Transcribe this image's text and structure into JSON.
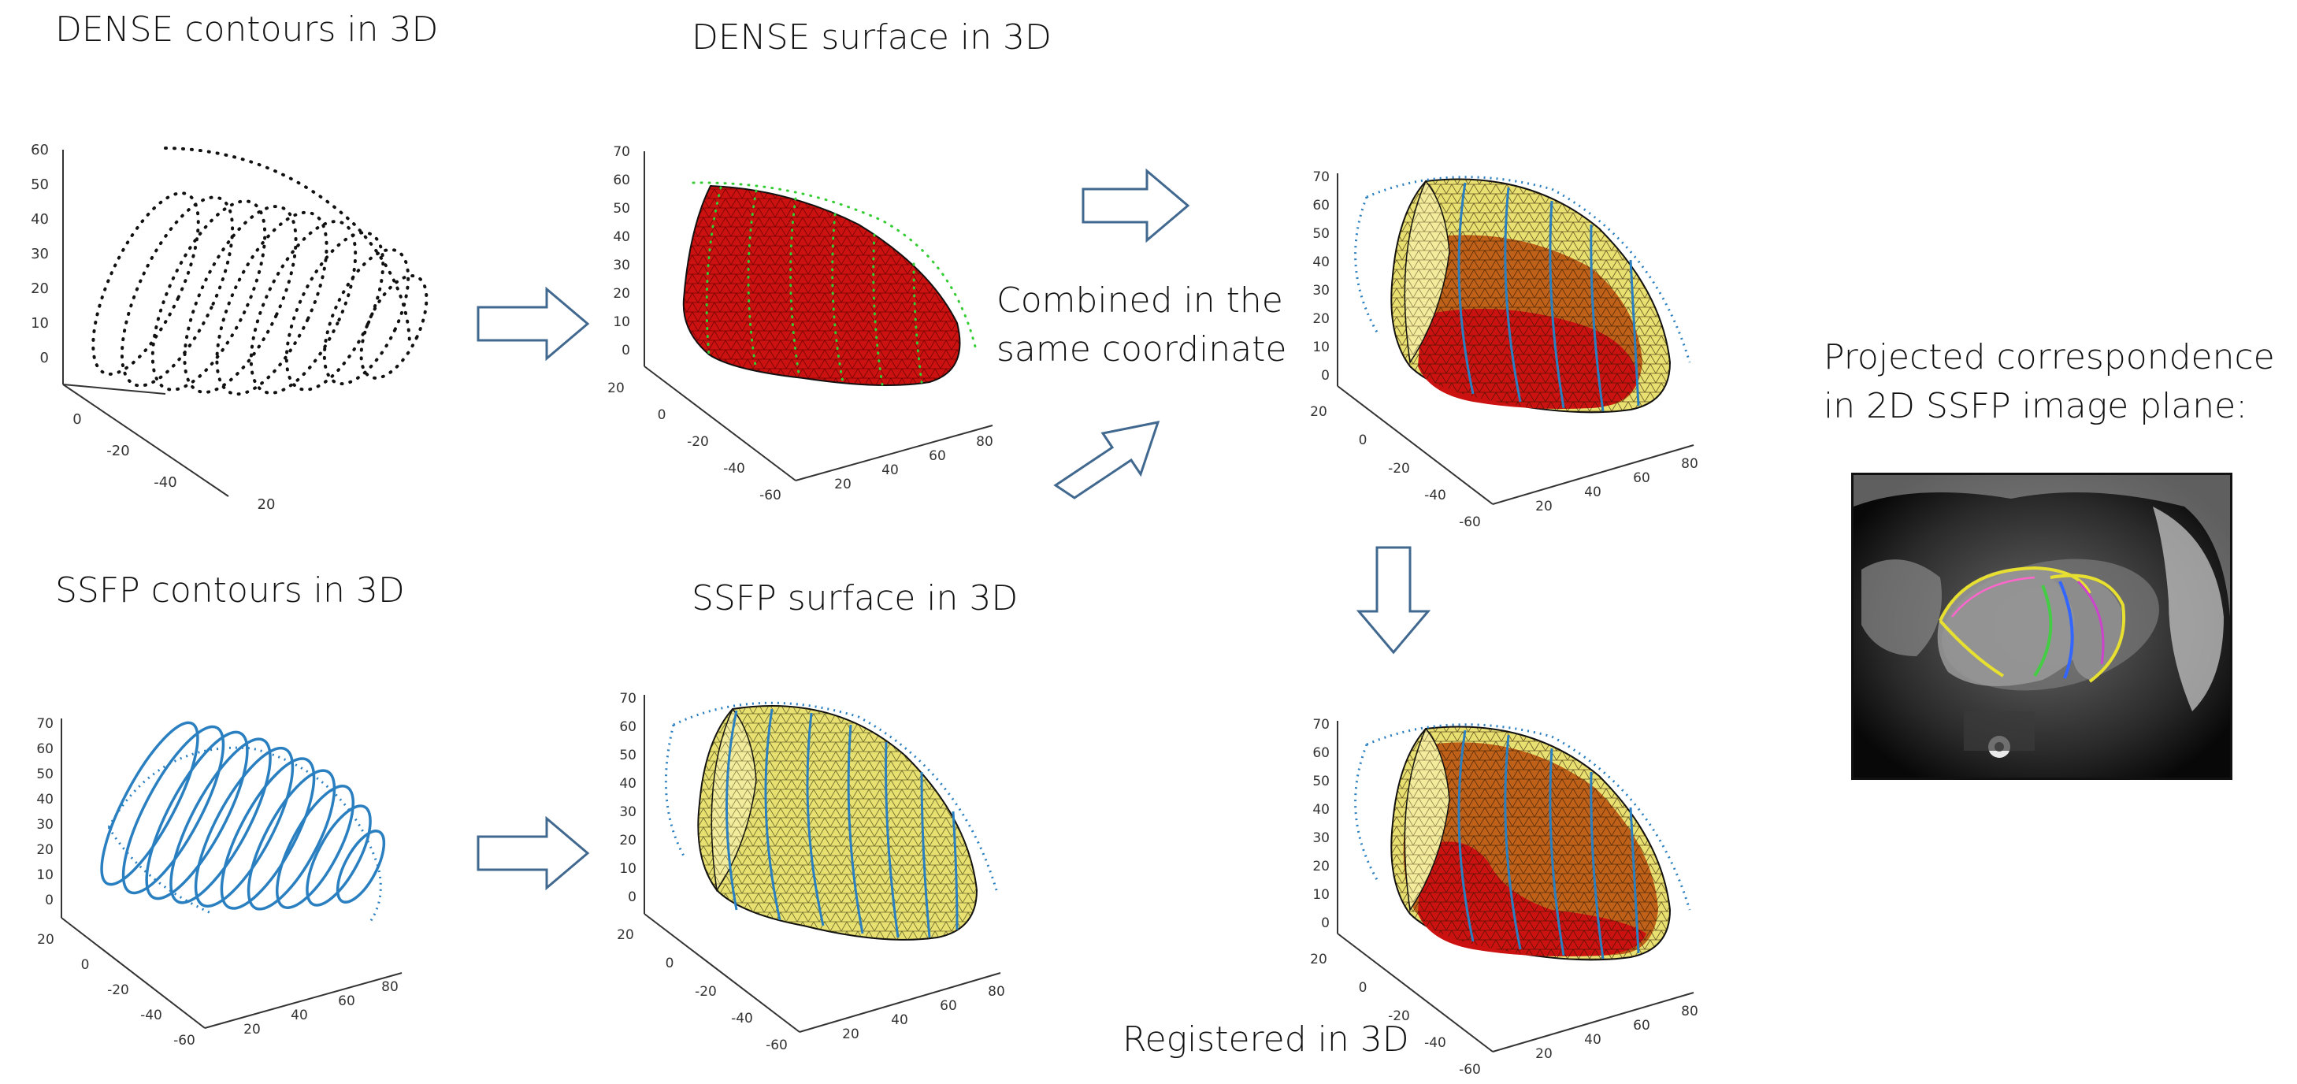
{
  "captions": {
    "dense_contours": "DENSE contours in 3D",
    "dense_surface": "DENSE surface in 3D",
    "ssfp_contours": "SSFP contours in 3D",
    "ssfp_surface": "SSFP surface in 3D",
    "combined_line1": "Combined in the",
    "combined_line2": "same coordinate",
    "registered": "Registered in 3D",
    "projected_line1": "Projected correspondence",
    "projected_line2": "in 2D SSFP image plane:"
  },
  "plots": {
    "dense_contours": {
      "z_ticks": [
        "60",
        "50",
        "40",
        "30",
        "20",
        "10",
        "0"
      ],
      "y_ticks": [
        "0",
        "-20",
        "-40",
        "20"
      ],
      "x_ticks": []
    },
    "dense_surface": {
      "z_ticks": [
        "70",
        "60",
        "50",
        "40",
        "30",
        "20",
        "10",
        "0"
      ],
      "y_ticks": [
        "20",
        "0",
        "-20",
        "-40",
        "-60"
      ],
      "x_ticks": [
        "20",
        "40",
        "60",
        "80"
      ]
    },
    "ssfp_contours": {
      "z_ticks": [
        "70",
        "60",
        "50",
        "40",
        "30",
        "20",
        "10",
        "0"
      ],
      "y_ticks": [
        "20",
        "0",
        "-20",
        "-40",
        "-60"
      ],
      "x_ticks": [
        "20",
        "40",
        "60",
        "80"
      ]
    },
    "ssfp_surface": {
      "z_ticks": [
        "70",
        "60",
        "50",
        "40",
        "30",
        "20",
        "10",
        "0"
      ],
      "y_ticks": [
        "20",
        "0",
        "-20",
        "-40",
        "-60"
      ],
      "x_ticks": [
        "20",
        "40",
        "60",
        "80"
      ]
    },
    "combined": {
      "z_ticks": [
        "70",
        "60",
        "50",
        "40",
        "30",
        "20",
        "10",
        "0"
      ],
      "y_ticks": [
        "20",
        "0",
        "-20",
        "-40",
        "-60"
      ],
      "x_ticks": [
        "20",
        "40",
        "60",
        "80"
      ]
    },
    "registered": {
      "z_ticks": [
        "70",
        "60",
        "50",
        "40",
        "30",
        "20",
        "10",
        "0"
      ],
      "y_ticks": [
        "20",
        "0",
        "-20",
        "-40",
        "-60"
      ],
      "x_ticks": [
        "20",
        "40",
        "60",
        "80"
      ]
    }
  },
  "colors": {
    "arrow_stroke": "#41688f",
    "dense_surface": "#cc1111",
    "ssfp_surface": "#e8e070",
    "contour_blue": "#2a7fc0",
    "dense_points": "#111111",
    "dense_contour_green": "#33cc33"
  },
  "icons": {
    "arrow": "hollow-block-arrow"
  }
}
